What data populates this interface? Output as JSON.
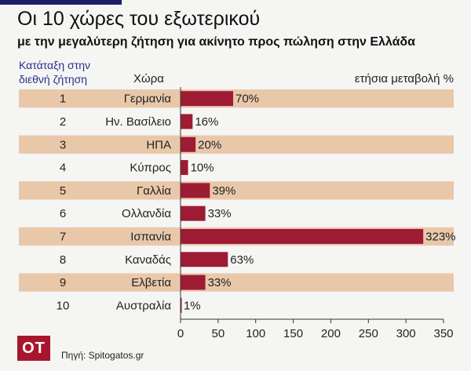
{
  "header": {
    "title": "Οι 10 χώρες του εξωτερικού",
    "subtitle": "με την μεγαλύτερη ζήτηση για ακίνητο προς πώληση στην Ελλάδα",
    "rank_label": "Κατάταξη στην διεθνή ζήτηση",
    "country_label": "Χώρα",
    "change_label": "ετήσια μεταβολή %"
  },
  "footer": {
    "logo": "OT",
    "source": "Πηγή: Spitogatos.gr"
  },
  "colors": {
    "bar": "#9e1b34",
    "stripe": "#e9c8aa",
    "rank_header": "#2b2f8c",
    "accent_bar": "#1e1f6b"
  },
  "chart_data": {
    "type": "bar",
    "orientation": "horizontal",
    "ranks": [
      "1",
      "2",
      "3",
      "4",
      "5",
      "6",
      "7",
      "8",
      "9",
      "10"
    ],
    "categories": [
      "Γερμανία",
      "Ην. Βασίλειο",
      "ΗΠΑ",
      "Κύπρος",
      "Γαλλία",
      "Ολλανδία",
      "Ισπανία",
      "Καναδάς",
      "Ελβετία",
      "Αυστραλία"
    ],
    "values": [
      70,
      16,
      20,
      10,
      39,
      33,
      323,
      63,
      33,
      1
    ],
    "value_labels": [
      "70%",
      "16%",
      "20%",
      "10%",
      "39%",
      "33%",
      "323%",
      "63%",
      "33%",
      "1%"
    ],
    "xlim": [
      0,
      350
    ],
    "xticks": [
      "0",
      "50",
      "100",
      "150",
      "200",
      "250",
      "300",
      "350"
    ],
    "grid": false
  }
}
